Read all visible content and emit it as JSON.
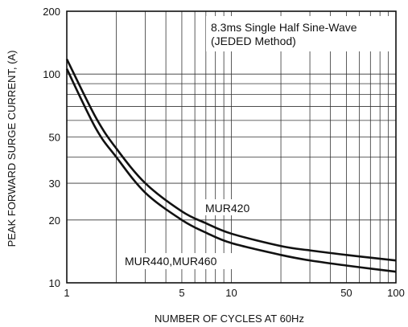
{
  "chart_data": {
    "type": "line",
    "xlabel": "NUMBER OF CYCLES AT 60Hz",
    "ylabel": "PEAK FORWARD SURGE CURRENT, (A)",
    "x_scale": "log",
    "y_scale": "log",
    "xlim": [
      1,
      100
    ],
    "ylim": [
      10,
      200
    ],
    "grid": true,
    "x_ticks": [
      {
        "value": 1,
        "label": "1"
      },
      {
        "value": 5,
        "label": "5"
      },
      {
        "value": 10,
        "label": "10"
      },
      {
        "value": 50,
        "label": "50"
      },
      {
        "value": 100,
        "label": "100"
      }
    ],
    "y_ticks": [
      {
        "value": 10,
        "label": "10"
      },
      {
        "value": 20,
        "label": "20"
      },
      {
        "value": 30,
        "label": "30"
      },
      {
        "value": 50,
        "label": "50"
      },
      {
        "value": 100,
        "label": "100"
      },
      {
        "value": 200,
        "label": "200"
      }
    ],
    "annotations": [
      "8.3ms Single Half Sine-Wave",
      "(JEDED Method)"
    ],
    "series": [
      {
        "name": "MUR420",
        "x": [
          1,
          1.5,
          2,
          3,
          5,
          7,
          10,
          20,
          30,
          50,
          70,
          100
        ],
        "y": [
          118,
          62,
          44,
          30,
          22,
          19.3,
          17.2,
          15,
          14.3,
          13.6,
          13.2,
          12.8
        ]
      },
      {
        "name": "MUR440,MUR460",
        "x": [
          1,
          1.5,
          2,
          3,
          5,
          7,
          10,
          20,
          30,
          50,
          70,
          100
        ],
        "y": [
          106,
          55,
          40,
          27,
          20,
          17.4,
          15.5,
          13.6,
          12.8,
          12.1,
          11.7,
          11.3
        ]
      }
    ]
  }
}
